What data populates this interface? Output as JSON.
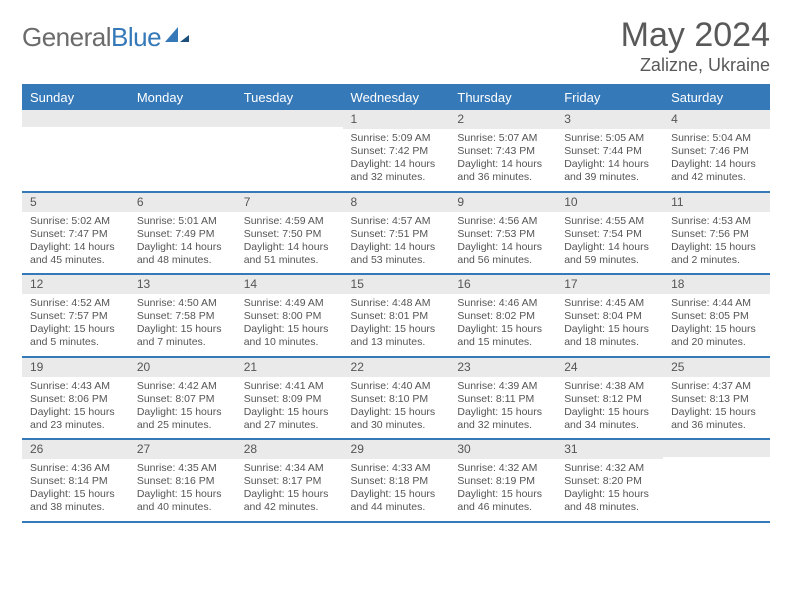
{
  "logo": {
    "text1": "General",
    "text2": "Blue"
  },
  "title": "May 2024",
  "location": "Zalizne, Ukraine",
  "colors": {
    "accent": "#3579b9",
    "band": "#eaeaea",
    "text": "#555555",
    "header_text": "#595959"
  },
  "weekdays": [
    "Sunday",
    "Monday",
    "Tuesday",
    "Wednesday",
    "Thursday",
    "Friday",
    "Saturday"
  ],
  "weeks": [
    [
      {
        "n": "",
        "sunrise": "",
        "sunset": "",
        "daylight": ""
      },
      {
        "n": "",
        "sunrise": "",
        "sunset": "",
        "daylight": ""
      },
      {
        "n": "",
        "sunrise": "",
        "sunset": "",
        "daylight": ""
      },
      {
        "n": "1",
        "sunrise": "Sunrise: 5:09 AM",
        "sunset": "Sunset: 7:42 PM",
        "daylight": "Daylight: 14 hours and 32 minutes."
      },
      {
        "n": "2",
        "sunrise": "Sunrise: 5:07 AM",
        "sunset": "Sunset: 7:43 PM",
        "daylight": "Daylight: 14 hours and 36 minutes."
      },
      {
        "n": "3",
        "sunrise": "Sunrise: 5:05 AM",
        "sunset": "Sunset: 7:44 PM",
        "daylight": "Daylight: 14 hours and 39 minutes."
      },
      {
        "n": "4",
        "sunrise": "Sunrise: 5:04 AM",
        "sunset": "Sunset: 7:46 PM",
        "daylight": "Daylight: 14 hours and 42 minutes."
      }
    ],
    [
      {
        "n": "5",
        "sunrise": "Sunrise: 5:02 AM",
        "sunset": "Sunset: 7:47 PM",
        "daylight": "Daylight: 14 hours and 45 minutes."
      },
      {
        "n": "6",
        "sunrise": "Sunrise: 5:01 AM",
        "sunset": "Sunset: 7:49 PM",
        "daylight": "Daylight: 14 hours and 48 minutes."
      },
      {
        "n": "7",
        "sunrise": "Sunrise: 4:59 AM",
        "sunset": "Sunset: 7:50 PM",
        "daylight": "Daylight: 14 hours and 51 minutes."
      },
      {
        "n": "8",
        "sunrise": "Sunrise: 4:57 AM",
        "sunset": "Sunset: 7:51 PM",
        "daylight": "Daylight: 14 hours and 53 minutes."
      },
      {
        "n": "9",
        "sunrise": "Sunrise: 4:56 AM",
        "sunset": "Sunset: 7:53 PM",
        "daylight": "Daylight: 14 hours and 56 minutes."
      },
      {
        "n": "10",
        "sunrise": "Sunrise: 4:55 AM",
        "sunset": "Sunset: 7:54 PM",
        "daylight": "Daylight: 14 hours and 59 minutes."
      },
      {
        "n": "11",
        "sunrise": "Sunrise: 4:53 AM",
        "sunset": "Sunset: 7:56 PM",
        "daylight": "Daylight: 15 hours and 2 minutes."
      }
    ],
    [
      {
        "n": "12",
        "sunrise": "Sunrise: 4:52 AM",
        "sunset": "Sunset: 7:57 PM",
        "daylight": "Daylight: 15 hours and 5 minutes."
      },
      {
        "n": "13",
        "sunrise": "Sunrise: 4:50 AM",
        "sunset": "Sunset: 7:58 PM",
        "daylight": "Daylight: 15 hours and 7 minutes."
      },
      {
        "n": "14",
        "sunrise": "Sunrise: 4:49 AM",
        "sunset": "Sunset: 8:00 PM",
        "daylight": "Daylight: 15 hours and 10 minutes."
      },
      {
        "n": "15",
        "sunrise": "Sunrise: 4:48 AM",
        "sunset": "Sunset: 8:01 PM",
        "daylight": "Daylight: 15 hours and 13 minutes."
      },
      {
        "n": "16",
        "sunrise": "Sunrise: 4:46 AM",
        "sunset": "Sunset: 8:02 PM",
        "daylight": "Daylight: 15 hours and 15 minutes."
      },
      {
        "n": "17",
        "sunrise": "Sunrise: 4:45 AM",
        "sunset": "Sunset: 8:04 PM",
        "daylight": "Daylight: 15 hours and 18 minutes."
      },
      {
        "n": "18",
        "sunrise": "Sunrise: 4:44 AM",
        "sunset": "Sunset: 8:05 PM",
        "daylight": "Daylight: 15 hours and 20 minutes."
      }
    ],
    [
      {
        "n": "19",
        "sunrise": "Sunrise: 4:43 AM",
        "sunset": "Sunset: 8:06 PM",
        "daylight": "Daylight: 15 hours and 23 minutes."
      },
      {
        "n": "20",
        "sunrise": "Sunrise: 4:42 AM",
        "sunset": "Sunset: 8:07 PM",
        "daylight": "Daylight: 15 hours and 25 minutes."
      },
      {
        "n": "21",
        "sunrise": "Sunrise: 4:41 AM",
        "sunset": "Sunset: 8:09 PM",
        "daylight": "Daylight: 15 hours and 27 minutes."
      },
      {
        "n": "22",
        "sunrise": "Sunrise: 4:40 AM",
        "sunset": "Sunset: 8:10 PM",
        "daylight": "Daylight: 15 hours and 30 minutes."
      },
      {
        "n": "23",
        "sunrise": "Sunrise: 4:39 AM",
        "sunset": "Sunset: 8:11 PM",
        "daylight": "Daylight: 15 hours and 32 minutes."
      },
      {
        "n": "24",
        "sunrise": "Sunrise: 4:38 AM",
        "sunset": "Sunset: 8:12 PM",
        "daylight": "Daylight: 15 hours and 34 minutes."
      },
      {
        "n": "25",
        "sunrise": "Sunrise: 4:37 AM",
        "sunset": "Sunset: 8:13 PM",
        "daylight": "Daylight: 15 hours and 36 minutes."
      }
    ],
    [
      {
        "n": "26",
        "sunrise": "Sunrise: 4:36 AM",
        "sunset": "Sunset: 8:14 PM",
        "daylight": "Daylight: 15 hours and 38 minutes."
      },
      {
        "n": "27",
        "sunrise": "Sunrise: 4:35 AM",
        "sunset": "Sunset: 8:16 PM",
        "daylight": "Daylight: 15 hours and 40 minutes."
      },
      {
        "n": "28",
        "sunrise": "Sunrise: 4:34 AM",
        "sunset": "Sunset: 8:17 PM",
        "daylight": "Daylight: 15 hours and 42 minutes."
      },
      {
        "n": "29",
        "sunrise": "Sunrise: 4:33 AM",
        "sunset": "Sunset: 8:18 PM",
        "daylight": "Daylight: 15 hours and 44 minutes."
      },
      {
        "n": "30",
        "sunrise": "Sunrise: 4:32 AM",
        "sunset": "Sunset: 8:19 PM",
        "daylight": "Daylight: 15 hours and 46 minutes."
      },
      {
        "n": "31",
        "sunrise": "Sunrise: 4:32 AM",
        "sunset": "Sunset: 8:20 PM",
        "daylight": "Daylight: 15 hours and 48 minutes."
      },
      {
        "n": "",
        "sunrise": "",
        "sunset": "",
        "daylight": ""
      }
    ]
  ]
}
